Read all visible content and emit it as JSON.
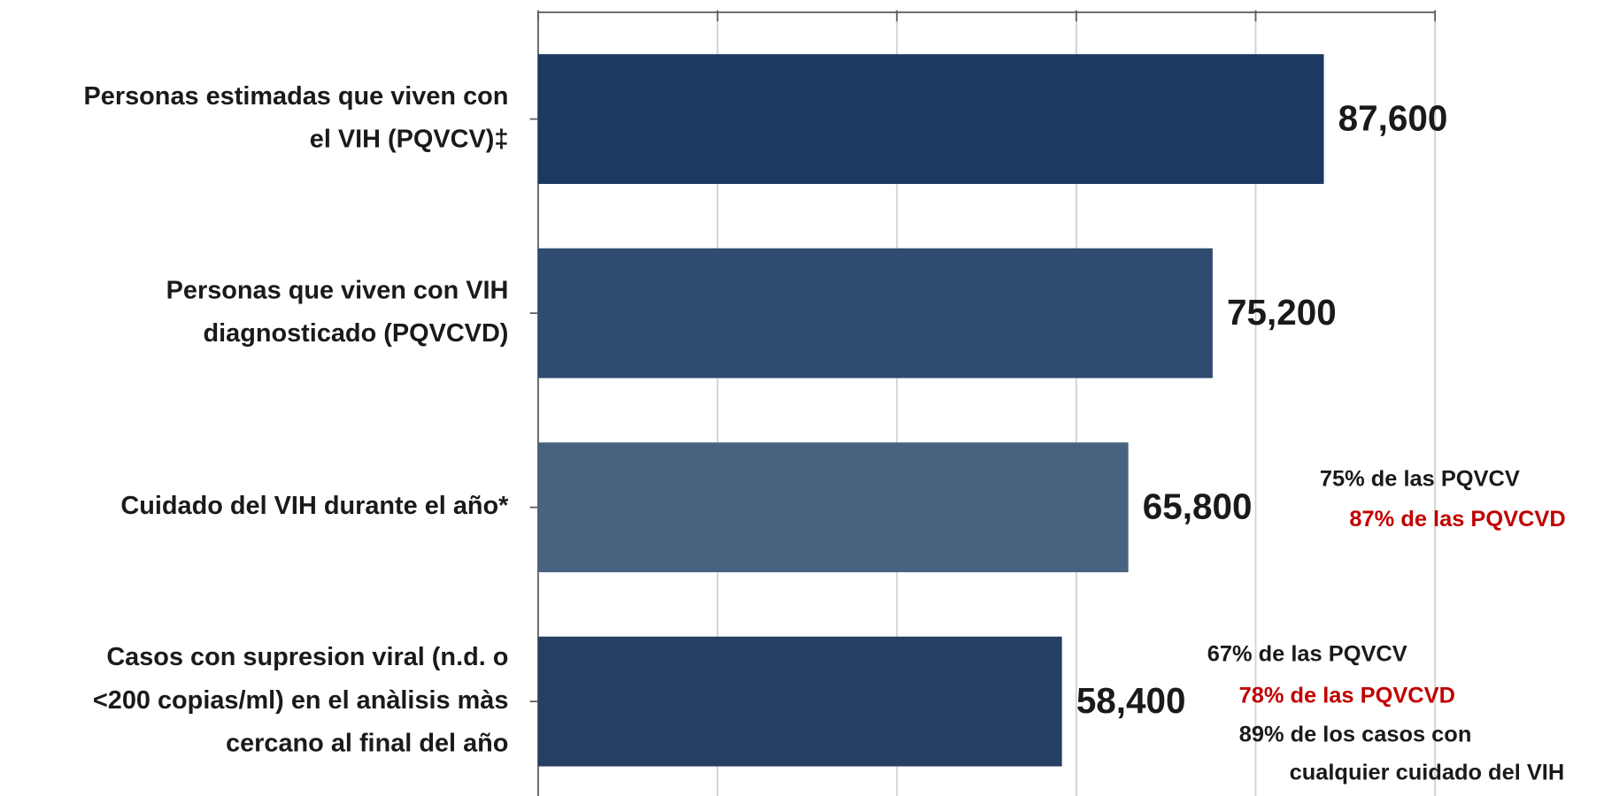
{
  "chart_data": {
    "type": "bar",
    "orientation": "horizontal",
    "categories": [
      [
        "Personas estimadas que viven con",
        "el VIH (PQVCV)‡"
      ],
      [
        "Personas que viven con VIH",
        "diagnosticado (PQVCVD)"
      ],
      [
        "Cuidado del VIH durante el año*"
      ],
      [
        "Casos con supresion viral (n.d. o",
        "<200 copias/ml) en el anàlisis màs",
        "cercano al final del año"
      ]
    ],
    "values": [
      87600,
      75200,
      65800,
      58400
    ],
    "value_labels": [
      "87,600",
      "75,200",
      "65,800",
      "58,400"
    ],
    "colors": [
      "#1c3961",
      "#2f4b70",
      "#48627f",
      "#263f62"
    ],
    "xlim": [
      0,
      100000
    ],
    "xticks": [
      0,
      20000,
      40000,
      60000,
      80000,
      100000
    ],
    "grid": true,
    "annotations": [
      {
        "text": "75% de las PQVCV",
        "color": "#1a1a1a"
      },
      {
        "text": "87% de las PQVCVD",
        "color": "#c00000"
      },
      {
        "text": "67% de las PQVCV",
        "color": "#1a1a1a"
      },
      {
        "text": "78% de las PQVCVD",
        "color": "#c00000"
      },
      {
        "text": "89% de los casos con",
        "color": "#1a1a1a"
      },
      {
        "text": "cualquier cuidado del VIH",
        "color": "#1a1a1a"
      }
    ]
  }
}
